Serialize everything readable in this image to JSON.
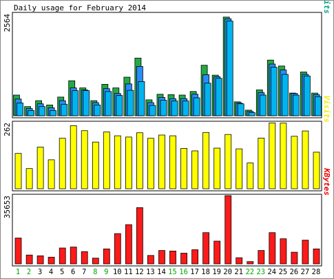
{
  "title": "Daily usage for February 2014",
  "chart_data": {
    "type": "bar",
    "title": "Daily usage for February 2014",
    "categories": [
      "1",
      "2",
      "3",
      "4",
      "5",
      "6",
      "7",
      "8",
      "9",
      "10",
      "11",
      "12",
      "13",
      "14",
      "15",
      "16",
      "17",
      "18",
      "19",
      "20",
      "21",
      "22",
      "23",
      "24",
      "25",
      "26",
      "27",
      "28"
    ],
    "weekend_days": [
      "1",
      "2",
      "8",
      "9",
      "15",
      "16",
      "22",
      "23"
    ],
    "panels": [
      {
        "name": "traffic",
        "ymax_label": "2564",
        "ymax": 2564,
        "legend": [
          {
            "label": "Pages",
            "color": "#0066cc"
          },
          {
            "label": "Files",
            "color": "#0099cc"
          },
          {
            "label": "Hits",
            "color": "#00a080"
          }
        ],
        "legend_separators": [
          "/",
          "/"
        ],
        "separator_color": "#555555",
        "series": [
          {
            "name": "Hits",
            "color": "#22aa44",
            "values": [
              520,
              230,
              380,
              270,
              470,
              880,
              700,
              380,
              790,
              700,
              970,
              1450,
              400,
              540,
              530,
              520,
              610,
              1270,
              1020,
              2480,
              350,
              140,
              650,
              1400,
              1250,
              570,
              1100,
              570
            ]
          },
          {
            "name": "Files",
            "color": "#2a8cff",
            "values": [
              420,
              180,
              300,
              200,
              380,
              700,
              650,
              330,
              680,
              560,
              800,
              1240,
              330,
              460,
              430,
              430,
              540,
              1030,
              980,
              2440,
              320,
              110,
              580,
              1300,
              1150,
              560,
              1040,
              530
            ]
          },
          {
            "name": "Pages",
            "color": "#00b4f0",
            "values": [
              320,
              130,
              230,
              130,
              290,
              630,
              630,
              270,
              610,
              510,
              640,
              860,
              260,
              390,
              370,
              370,
              450,
              820,
              940,
              2380,
              300,
              80,
              520,
              1220,
              1040,
              520,
              1000,
              480
            ]
          }
        ]
      },
      {
        "name": "visits",
        "ymax_label": "262",
        "ymax": 262,
        "legend": [
          {
            "label": "Visits",
            "color": "#eeee00"
          }
        ],
        "series": [
          {
            "name": "Visits",
            "color": "#ffff00",
            "values": [
              140,
              80,
              165,
              115,
              200,
              250,
              230,
              185,
              225,
              210,
              205,
              222,
              200,
              213,
              210,
              160,
              150,
              223,
              161,
              215,
              158,
              102,
              201,
              261,
              260,
              208,
              229,
              145
            ]
          }
        ]
      },
      {
        "name": "kbytes",
        "ymax_label": "35653",
        "ymax": 35653,
        "legend": [
          {
            "label": "KBytes",
            "color": "#ee0000"
          }
        ],
        "series": [
          {
            "name": "KBytes",
            "color": "#ff1a1a",
            "values": [
              13500,
              4600,
              4200,
              3500,
              8300,
              8800,
              6400,
              3000,
              7800,
              15800,
              20500,
              29400,
              4400,
              7000,
              6700,
              5600,
              7400,
              16300,
              11900,
              35650,
              3200,
              1200,
              7000,
              16300,
              13100,
              6100,
              12400,
              7800
            ]
          }
        ]
      }
    ]
  }
}
